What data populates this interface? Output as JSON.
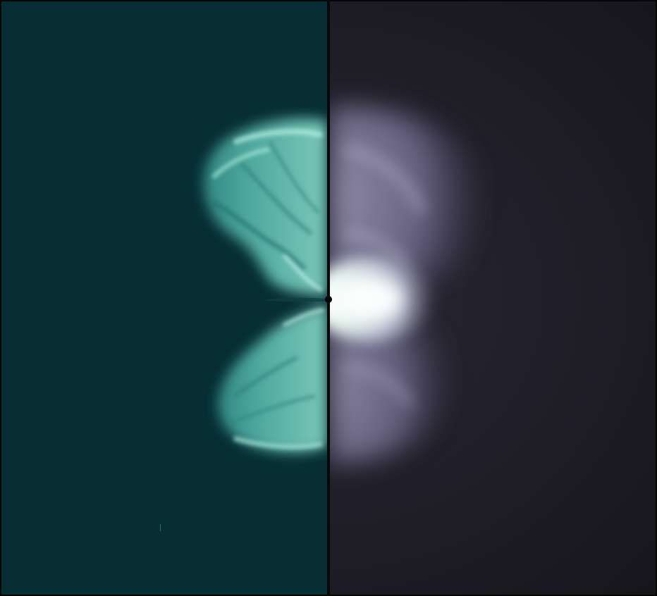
{
  "figure": {
    "left_panel": {
      "background_color": "#062e33",
      "plume_color": "#7fd9c8",
      "plume_highlight": "#b5f0e2"
    },
    "right_panel": {
      "background_color": "#211f29",
      "glow_color": "#6e6a8c",
      "core_color": "#f2fbf6"
    },
    "divider_color": "#080808"
  }
}
